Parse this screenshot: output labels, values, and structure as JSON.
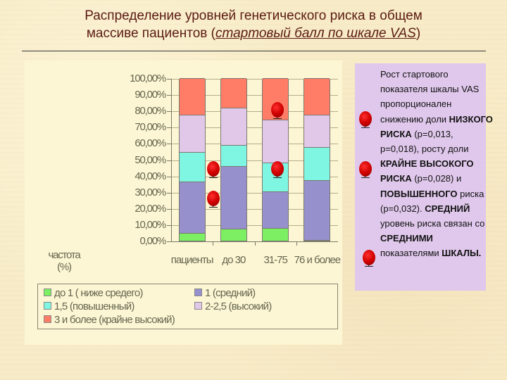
{
  "slide": {
    "title_line1": "Распределение уровней генетического риска в общем",
    "title_line2_prefix": "массиве пациентов (",
    "title_line2_underlined": "стартовый балл по шкале VAS",
    "title_line2_suffix": ")"
  },
  "chart_data": {
    "type": "bar",
    "stacked": true,
    "percent_stacked": true,
    "title": "",
    "xlabel": "",
    "ylabel": "частота (%)",
    "ylim": [
      0,
      100
    ],
    "y_ticks": [
      "100,00%",
      "90,00%",
      "80,00%",
      "70,00%",
      "60,00%",
      "50,00%",
      "40,00%",
      "30,00%",
      "20,00%",
      "10,00%",
      "0,00%"
    ],
    "categories": [
      "пациенты",
      "до 30",
      "31-75",
      "76 и более"
    ],
    "series": [
      {
        "name": "до 1 ( ниже средего)",
        "color": "#7cf062",
        "values": [
          4.9,
          7.2,
          7.7,
          0.6
        ]
      },
      {
        "name": "1 (средний)",
        "color": "#9690cc",
        "values": [
          31.3,
          38.8,
          22.5,
          36.8
        ]
      },
      {
        "name": "1,5 (повышенный)",
        "color": "#7ef6e2",
        "values": [
          18.2,
          13.0,
          17.8,
          20.0
        ]
      },
      {
        "name": "2-2,5 (высокий)",
        "color": "#e2c8e8",
        "values": [
          23.0,
          22.8,
          26.5,
          20.0
        ]
      },
      {
        "name": "3 и более (крайне высокий)",
        "color": "#ff7c66",
        "values": [
          22.6,
          18.2,
          25.5,
          22.6
        ]
      }
    ],
    "legend_position": "bottom",
    "grid": true,
    "annotations": [
      {
        "type": "red-balloon-marker",
        "between": [
          "до 30",
          "31-75"
        ],
        "levels": [
          2
        ]
      },
      {
        "type": "red-balloon-marker",
        "between": [
          "31-75",
          "76 и более"
        ],
        "levels": [
          2
        ]
      }
    ]
  },
  "legend": {
    "items": [
      {
        "label": "до 1 ( ниже средего)",
        "color": "#7cf062"
      },
      {
        "label": "1 (средний)",
        "color": "#9690cc"
      },
      {
        "label": "1,5 (повышенный)",
        "color": "#7ef6e2"
      },
      {
        "label": "2-2,5 (высокий)",
        "color": "#e2c8e8"
      },
      {
        "label": "3 и более (крайне высокий)",
        "color": "#ff7c66"
      }
    ]
  },
  "axis": {
    "y_label_line1": "частота",
    "y_label_line2": "(%)"
  },
  "note": {
    "p1": "Рост стартового показателя шкалы VAS пропорционален снижению доли ",
    "b1": "НИЗКОГО РИСКА",
    "p2": " (р=0,013, р=0,018), росту доли ",
    "b2": "КРАЙНЕ ВЫСОКОГО РИСКА",
    "p3": " (р=0,028) и ",
    "b3": "ПОВЫШЕННОГО",
    "p4": " риска (р=0,032). ",
    "b4": "СРЕДНИЙ",
    "p5": " уровень риска связан со ",
    "b5": "СРЕДНИМИ",
    "p6": " показателями ",
    "b6": "ШКАЛЫ."
  }
}
